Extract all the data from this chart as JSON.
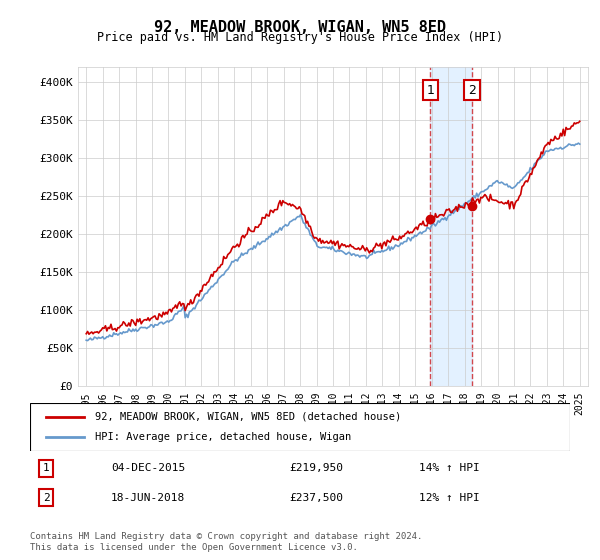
{
  "title": "92, MEADOW BROOK, WIGAN, WN5 8ED",
  "subtitle": "Price paid vs. HM Land Registry's House Price Index (HPI)",
  "ylabel_ticks": [
    "£0",
    "£50K",
    "£100K",
    "£150K",
    "£200K",
    "£250K",
    "£300K",
    "£350K",
    "£400K"
  ],
  "ytick_values": [
    0,
    50000,
    100000,
    150000,
    200000,
    250000,
    300000,
    350000,
    400000
  ],
  "ylim": [
    0,
    420000
  ],
  "sale1_date": 2015.92,
  "sale1_price": 219950,
  "sale2_date": 2018.46,
  "sale2_price": 237500,
  "legend_label_red": "92, MEADOW BROOK, WIGAN, WN5 8ED (detached house)",
  "legend_label_blue": "HPI: Average price, detached house, Wigan",
  "annotation1_label": "1",
  "annotation1_text": "04-DEC-2015",
  "annotation1_price": "£219,950",
  "annotation1_hpi": "14% ↑ HPI",
  "annotation2_label": "2",
  "annotation2_text": "18-JUN-2018",
  "annotation2_price": "£237,500",
  "annotation2_hpi": "12% ↑ HPI",
  "footer": "Contains HM Land Registry data © Crown copyright and database right 2024.\nThis data is licensed under the Open Government Licence v3.0.",
  "red_color": "#cc0000",
  "blue_color": "#6699cc",
  "shading_color": "#ddeeff",
  "grid_color": "#cccccc",
  "background_color": "#ffffff"
}
